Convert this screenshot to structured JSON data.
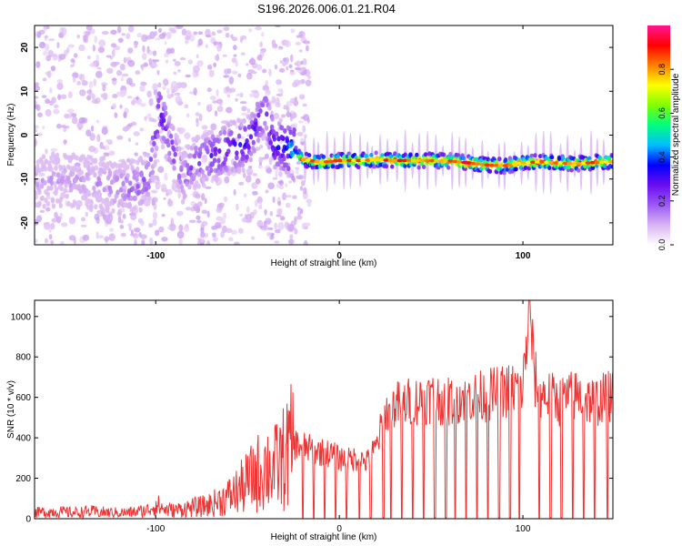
{
  "title": "S196.2026.006.01.21.R04",
  "chart_data": [
    {
      "type": "heatmap",
      "title": "S196.2026.006.01.21.R04",
      "xlabel": "Height of straight line (km)",
      "ylabel": "Frequency (Hz)",
      "xlim": [
        -166,
        149
      ],
      "ylim": [
        -25,
        25
      ],
      "xticks": [
        -100,
        0,
        100
      ],
      "xtick_labels": [
        "-100",
        "0",
        "100"
      ],
      "yticks": [
        -20,
        -10,
        0,
        10,
        20
      ],
      "ytick_labels": [
        "-20",
        "-10",
        "0",
        "10",
        "20"
      ],
      "grid": false,
      "dominant_frequency_hz": -6,
      "colorbar": {
        "label": "Normalized spectral amplitude",
        "range": [
          0,
          1
        ],
        "ticks": [
          0,
          0.2,
          0.4,
          0.6,
          0.8
        ],
        "tick_labels": [
          "0.0",
          "0.2",
          "0.4",
          "0.6",
          "0.8"
        ],
        "colors": [
          "#ffffff",
          "#d9b3f2",
          "#9b59f5",
          "#6a0df0",
          "#0000ff",
          "#00bfff",
          "#00ff7f",
          "#7fff00",
          "#ffff00",
          "#ff8000",
          "#ff0000",
          "#ff1493"
        ]
      },
      "ridge": [
        {
          "x": -160,
          "y": -10.5,
          "a": 0.12
        },
        {
          "x": -150,
          "y": -10,
          "a": 0.12
        },
        {
          "x": -140,
          "y": -11,
          "a": 0.13
        },
        {
          "x": -130,
          "y": -11,
          "a": 0.14
        },
        {
          "x": -120,
          "y": -12,
          "a": 0.17
        },
        {
          "x": -110,
          "y": -11.5,
          "a": 0.2
        },
        {
          "x": -104,
          "y": -10,
          "a": 0.22
        },
        {
          "x": -98,
          "y": 6,
          "a": 0.3
        },
        {
          "x": -85,
          "y": -10,
          "a": 0.2
        },
        {
          "x": -78,
          "y": -6,
          "a": 0.22
        },
        {
          "x": -70,
          "y": -5,
          "a": 0.28
        },
        {
          "x": -60,
          "y": -3,
          "a": 0.3
        },
        {
          "x": -50,
          "y": -2,
          "a": 0.33
        },
        {
          "x": -40,
          "y": 6,
          "a": 0.25
        },
        {
          "x": -36,
          "y": -2,
          "a": 0.36
        },
        {
          "x": -28,
          "y": -3,
          "a": 0.4
        },
        {
          "x": -20,
          "y": -5.5,
          "a": 0.82
        },
        {
          "x": -10,
          "y": -6.2,
          "a": 0.85
        },
        {
          "x": 0,
          "y": -5.8,
          "a": 0.88
        },
        {
          "x": 10,
          "y": -5.8,
          "a": 0.86
        },
        {
          "x": 20,
          "y": -5.6,
          "a": 0.83
        },
        {
          "x": 30,
          "y": -5.8,
          "a": 0.9
        },
        {
          "x": 40,
          "y": -5.8,
          "a": 0.88
        },
        {
          "x": 50,
          "y": -5.8,
          "a": 0.86
        },
        {
          "x": 60,
          "y": -5.9,
          "a": 0.85
        },
        {
          "x": 70,
          "y": -6.3,
          "a": 0.92
        },
        {
          "x": 80,
          "y": -6.8,
          "a": 0.88
        },
        {
          "x": 90,
          "y": -7,
          "a": 0.85
        },
        {
          "x": 100,
          "y": -6.3,
          "a": 0.84
        },
        {
          "x": 110,
          "y": -6.1,
          "a": 0.86
        },
        {
          "x": 120,
          "y": -6.4,
          "a": 0.83
        },
        {
          "x": 130,
          "y": -6.5,
          "a": 0.85
        },
        {
          "x": 140,
          "y": -6.2,
          "a": 0.88
        },
        {
          "x": 148,
          "y": -6.1,
          "a": 0.85
        }
      ]
    },
    {
      "type": "line",
      "xlabel": "Height of straight line (km)",
      "ylabel": "SNR (10 * v/v)",
      "xlim": [
        -166,
        149
      ],
      "ylim": [
        0,
        1080
      ],
      "xticks": [
        -100,
        0,
        100
      ],
      "xtick_labels": [
        "-100",
        "0",
        "100"
      ],
      "yticks": [
        0,
        200,
        400,
        600,
        800,
        1000
      ],
      "ytick_labels": [
        "0",
        "200",
        "400",
        "600",
        "800",
        "1000"
      ],
      "grid": false,
      "series": [
        {
          "name": "SNR",
          "color": "#ee3333",
          "x": [
            -166,
            -155,
            -145,
            -135,
            -125,
            -115,
            -105,
            -100,
            -95,
            -90,
            -85,
            -80,
            -75,
            -70,
            -65,
            -60,
            -55,
            -50,
            -45,
            -40,
            -35,
            -30,
            -25,
            -20,
            -15,
            -10,
            -5,
            0,
            5,
            10,
            15,
            20,
            25,
            30,
            35,
            40,
            45,
            50,
            55,
            60,
            65,
            70,
            75,
            80,
            85,
            90,
            95,
            100,
            102,
            104,
            106,
            110,
            115,
            120,
            125,
            130,
            135,
            140,
            145,
            149
          ],
          "y": [
            30,
            35,
            30,
            35,
            30,
            30,
            40,
            70,
            45,
            40,
            50,
            55,
            60,
            70,
            90,
            110,
            140,
            180,
            220,
            260,
            250,
            300,
            370,
            360,
            340,
            330,
            320,
            300,
            290,
            300,
            280,
            350,
            520,
            560,
            570,
            580,
            590,
            600,
            590,
            580,
            600,
            610,
            600,
            610,
            620,
            630,
            640,
            650,
            880,
            1060,
            700,
            620,
            600,
            580,
            600,
            610,
            590,
            580,
            600,
            610
          ],
          "dropouts": [
            -20,
            -14,
            -8,
            -2,
            4,
            11,
            17,
            24,
            28,
            34,
            40,
            46,
            52,
            58,
            63,
            69,
            75,
            81,
            87,
            93,
            98,
            109,
            115,
            121,
            127,
            133,
            139,
            146
          ]
        }
      ]
    }
  ]
}
